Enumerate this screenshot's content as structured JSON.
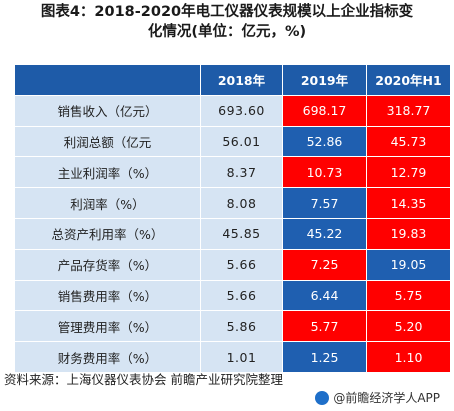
{
  "title_line1": "图表4：2018-2020年电工仪器仪表规模以上企业指标变",
  "title_line2": "化情况(单位：亿元，%)",
  "source": "资料来源：上海仪器仪表协会 前瞻产业研究院整理",
  "footer": "@前瞻经济学人APP",
  "colors": {
    "header": "#1e5ba8",
    "label_bg": "#d6e4f3",
    "up": "#ff0000",
    "down": "#1f5fb0"
  },
  "chart_data": {
    "type": "table",
    "columns": [
      "2018年",
      "2019年",
      "2020年H1"
    ],
    "rows": [
      {
        "label": "销售收入（亿元）",
        "values": [
          "693.60",
          "698.17",
          "318.77"
        ],
        "colors": [
          "",
          "red",
          "red"
        ]
      },
      {
        "label": "利润总额（亿元",
        "values": [
          "56.01",
          "52.86",
          "45.73"
        ],
        "colors": [
          "",
          "blue",
          "red"
        ]
      },
      {
        "label": "主业利润率（%）",
        "values": [
          "8.37",
          "10.73",
          "12.79"
        ],
        "colors": [
          "",
          "red",
          "red"
        ]
      },
      {
        "label": "利润率（%）",
        "values": [
          "8.08",
          "7.57",
          "14.35"
        ],
        "colors": [
          "",
          "blue",
          "red"
        ]
      },
      {
        "label": "总资产利用率（%）",
        "values": [
          "45.85",
          "45.22",
          "19.83"
        ],
        "colors": [
          "",
          "blue",
          "red"
        ]
      },
      {
        "label": "产品存货率（%）",
        "values": [
          "5.66",
          "7.25",
          "19.05"
        ],
        "colors": [
          "",
          "red",
          "blue"
        ]
      },
      {
        "label": "销售费用率（%）",
        "values": [
          "5.66",
          "6.44",
          "5.75"
        ],
        "colors": [
          "",
          "blue",
          "red"
        ]
      },
      {
        "label": "管理费用率（%）",
        "values": [
          "5.86",
          "5.77",
          "5.20"
        ],
        "colors": [
          "",
          "red",
          "red"
        ]
      },
      {
        "label": "财务费用率（%）",
        "values": [
          "1.01",
          "1.25",
          "1.10"
        ],
        "colors": [
          "",
          "blue",
          "red"
        ]
      }
    ]
  }
}
